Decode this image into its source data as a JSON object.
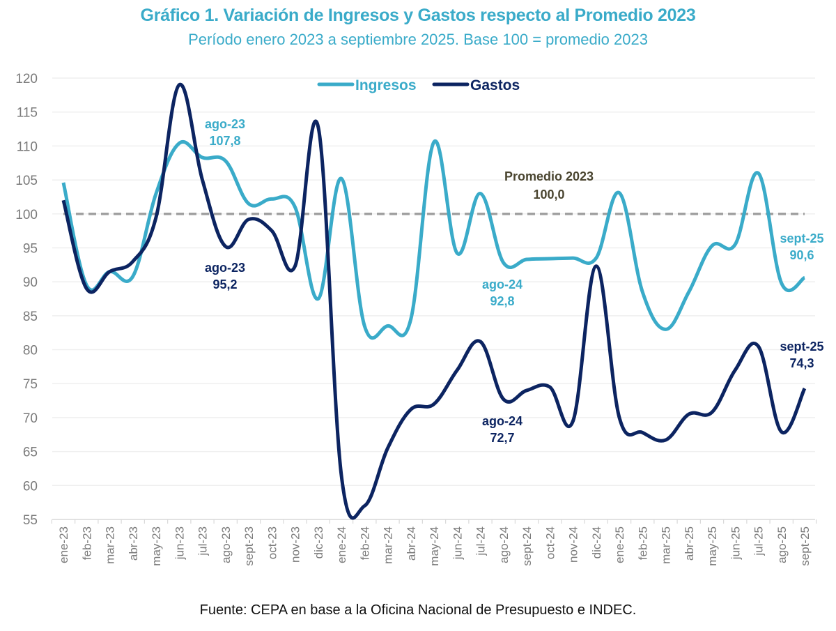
{
  "header": {
    "title": "Gráfico 1. Variación de Ingresos y Gastos respecto al Promedio 2023",
    "subtitle": "Período enero 2023 a septiembre 2025. Base 100 = promedio 2023"
  },
  "footer": {
    "source": "Fuente: CEPA en base a la Oficina Nacional de Presupuesto e INDEC."
  },
  "chart_data": {
    "type": "line",
    "title": "Gráfico 1. Variación de Ingresos y Gastos respecto al Promedio 2023",
    "subtitle": "Período enero 2023 a septiembre 2025. Base 100 = promedio 2023",
    "xlabel": "",
    "ylabel": "",
    "ylim": [
      55,
      120
    ],
    "yticks": [
      55,
      60,
      65,
      70,
      75,
      80,
      85,
      90,
      95,
      100,
      105,
      110,
      115,
      120
    ],
    "grid": true,
    "legend_position": "top-center",
    "categories": [
      "ene-23",
      "feb-23",
      "mar-23",
      "abr-23",
      "may-23",
      "jun-23",
      "jul-23",
      "ago-23",
      "sept-23",
      "oct-23",
      "nov-23",
      "dic-23",
      "ene-24",
      "feb-24",
      "mar-24",
      "abr-24",
      "may-24",
      "jun-24",
      "jul-24",
      "ago-24",
      "sept-24",
      "oct-24",
      "nov-24",
      "dic-24",
      "ene-25",
      "feb-25",
      "mar-25",
      "abr-25",
      "may-25",
      "jun-25",
      "jul-25",
      "ago-25",
      "sept-25"
    ],
    "series": [
      {
        "name": "Ingresos",
        "color": "#3aabc9",
        "values": [
          104.6,
          89.5,
          91.5,
          90.8,
          103.0,
          110.4,
          108.3,
          107.8,
          101.5,
          102.2,
          101.0,
          87.5,
          105.2,
          83.5,
          83.5,
          84.5,
          110.6,
          94.2,
          103.0,
          92.8,
          93.3,
          93.4,
          93.5,
          93.5,
          103.1,
          88.5,
          83.0,
          88.5,
          95.3,
          95.5,
          106.0,
          89.8,
          90.6
        ]
      },
      {
        "name": "Gastos",
        "color": "#0c2461",
        "values": [
          102.0,
          89.0,
          91.5,
          93.0,
          99.5,
          119.0,
          105.0,
          95.2,
          99.2,
          97.5,
          92.3,
          112.8,
          61.5,
          57.0,
          65.5,
          71.2,
          72.0,
          77.0,
          81.2,
          72.7,
          74.0,
          74.5,
          69.5,
          92.3,
          70.0,
          67.8,
          66.7,
          70.5,
          70.8,
          77.0,
          80.5,
          67.9,
          74.3
        ]
      }
    ],
    "reference_line": {
      "value": 100.0,
      "label_line1": "Promedio 2023",
      "label_line2": "100,0",
      "color": "#a0a0a0",
      "label_color": "#4a4530"
    },
    "annotations": [
      {
        "series": "Ingresos",
        "category": "ago-23",
        "line1": "ago-23",
        "line2": "107,8"
      },
      {
        "series": "Gastos",
        "category": "ago-23",
        "line1": "ago-23",
        "line2": "95,2"
      },
      {
        "series": "Ingresos",
        "category": "ago-24",
        "line1": "ago-24",
        "line2": "92,8"
      },
      {
        "series": "Gastos",
        "category": "ago-24",
        "line1": "ago-24",
        "line2": "72,7"
      },
      {
        "series": "Ingresos",
        "category": "sept-25",
        "line1": "sept-25",
        "line2": "90,6"
      },
      {
        "series": "Gastos",
        "category": "sept-25",
        "line1": "sept-25",
        "line2": "74,3"
      }
    ]
  }
}
